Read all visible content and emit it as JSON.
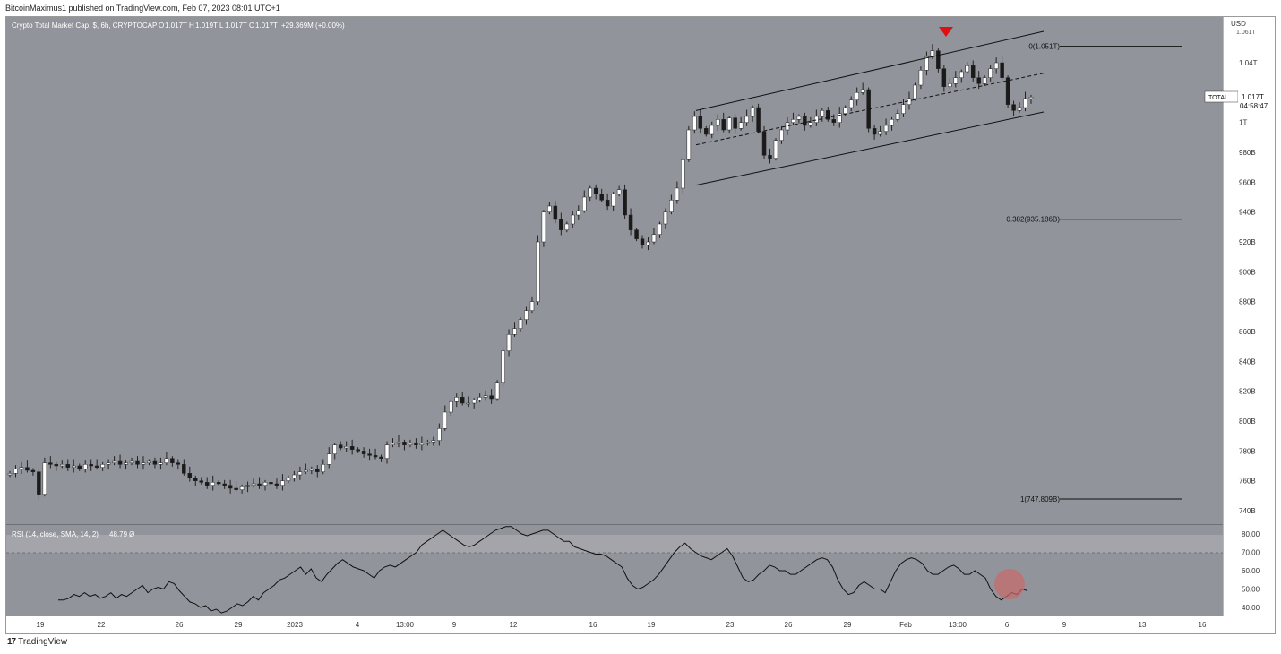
{
  "header": {
    "published": "BitcoinMaximus1 published on TradingView.com, Feb 07, 2023 08:01 UTC+1"
  },
  "footer": {
    "brand": "TradingView",
    "logo_icon": "tradingview-logo-icon"
  },
  "colors": {
    "panel_bg": "#92949b",
    "bull": "#ffffff",
    "bear": "#1a1a1a",
    "marker": "#e01010",
    "rsi_circle": "#c96a6a"
  },
  "legend": {
    "title": "Crypto Total Market Cap, $, 6h, CRYPTOCAP",
    "o_label": "O",
    "o_value": "1.017T",
    "h_label": "H",
    "h_value": "1.019T",
    "l_label": "L",
    "l_value": "1.017T",
    "c_label": "C",
    "c_value": "1.017T",
    "change": "+29.369M (+0.00%)"
  },
  "axis": {
    "currency": "USD",
    "top_partial": "1.061T",
    "price_ticks": [
      "1.04T",
      "1T",
      "980B",
      "960B",
      "940B",
      "920B",
      "900B",
      "880B",
      "860B",
      "840B",
      "820B",
      "800B",
      "780B",
      "760B",
      "740B"
    ],
    "rsi_ticks": [
      "80.00",
      "70.00",
      "60.00",
      "50.00",
      "40.00"
    ],
    "time_ticks": [
      "19",
      "22",
      "26",
      "29",
      "2023",
      "4",
      "13:00",
      "9",
      "12",
      "16",
      "19",
      "23",
      "26",
      "29",
      "Feb",
      "13:00",
      "6",
      "9",
      "13",
      "16"
    ]
  },
  "price_tag": {
    "symbol": "TOTAL",
    "value": "1.017T",
    "countdown": "04:58:47"
  },
  "fib_levels": [
    {
      "label": "0(1.051T)",
      "value": 1.051
    },
    {
      "label": "0.382(935.186B)",
      "value": 0.935186
    },
    {
      "label": "1(747.809B)",
      "value": 0.747809
    }
  ],
  "rsi_legend": {
    "label": "RSI (14, close, SMA, 14, 2)",
    "value": "48.79",
    "extra": "Ø"
  },
  "chart_data": {
    "type": "candlestick",
    "title": "Crypto Total Market Cap, $, 6h, CRYPTOCAP",
    "ylabel": "USD",
    "ylim": [
      740,
      1061
    ],
    "unit": "B",
    "x_ticks": [
      "19",
      "22",
      "26",
      "29",
      "2023",
      "4",
      "13:00",
      "9",
      "12",
      "16",
      "19",
      "23",
      "26",
      "29",
      "Feb",
      "13:00",
      "6",
      "9",
      "13",
      "16"
    ],
    "close_path": [
      765,
      768,
      769,
      767,
      766,
      751,
      772,
      771,
      770,
      771,
      769,
      770,
      768,
      771,
      770,
      769,
      771,
      772,
      773,
      771,
      772,
      773,
      771,
      772,
      773,
      771,
      772,
      775,
      772,
      771,
      765,
      762,
      760,
      759,
      757,
      759,
      758,
      757,
      755,
      754,
      756,
      757,
      758,
      757,
      759,
      758,
      757,
      760,
      762,
      764,
      766,
      767,
      768,
      766,
      771,
      778,
      784,
      782,
      783,
      781,
      780,
      778,
      777,
      776,
      775,
      784,
      785,
      786,
      784,
      785,
      784,
      785,
      786,
      787,
      795,
      806,
      813,
      816,
      812,
      812,
      814,
      816,
      817,
      815,
      826,
      847,
      858,
      862,
      868,
      874,
      880,
      920,
      940,
      944,
      935,
      928,
      932,
      938,
      941,
      950,
      956,
      952,
      948,
      944,
      952,
      955,
      938,
      928,
      922,
      918,
      920,
      925,
      932,
      940,
      948,
      956,
      975,
      995,
      1004,
      996,
      992,
      998,
      1002,
      995,
      1003,
      996,
      1000,
      1004,
      1010,
      994,
      978,
      976,
      988,
      995,
      1000,
      1002,
      1004,
      998,
      1000,
      1004,
      1008,
      1002,
      1000,
      1006,
      1010,
      1015,
      1020,
      1022,
      996,
      992,
      994,
      998,
      1002,
      1006,
      1012,
      1016,
      1025,
      1035,
      1044,
      1048,
      1036,
      1024,
      1026,
      1030,
      1034,
      1038,
      1030,
      1026,
      1030,
      1036,
      1040,
      1030,
      1012,
      1008,
      1010,
      1016,
      1017
    ],
    "channel": {
      "upper": [
        [
          0,
          1008
        ],
        [
          1,
          1061
        ]
      ],
      "lower": [
        [
          0,
          958
        ],
        [
          1,
          1007
        ]
      ],
      "mid": [
        [
          0,
          985
        ],
        [
          1,
          1033
        ]
      ]
    },
    "fib": [
      {
        "level": 0,
        "value": 1051
      },
      {
        "level": 0.382,
        "value": 935.186
      },
      {
        "level": 1,
        "value": 747.809
      }
    ],
    "last": {
      "value": 1017,
      "label": "1.017T"
    },
    "rsi": {
      "name": "RSI (14, close, SMA, 14, 2)",
      "last": 48.79,
      "ylim": [
        35,
        85
      ],
      "bands": [
        70,
        50
      ],
      "values": [
        44,
        44,
        45,
        47,
        46,
        48,
        46,
        47,
        45,
        46,
        48,
        45,
        47,
        46,
        48,
        50,
        52,
        48,
        50,
        51,
        50,
        54,
        53,
        49,
        46,
        43,
        42,
        40,
        41,
        38,
        39,
        37,
        38,
        40,
        42,
        41,
        43,
        46,
        44,
        48,
        50,
        52,
        55,
        56,
        58,
        60,
        62,
        58,
        61,
        56,
        54,
        58,
        61,
        64,
        66,
        64,
        62,
        61,
        60,
        58,
        56,
        60,
        62,
        63,
        62,
        64,
        66,
        68,
        70,
        74,
        76,
        78,
        80,
        82,
        80,
        78,
        76,
        74,
        73,
        74,
        76,
        78,
        80,
        82,
        83,
        84,
        84,
        82,
        80,
        79,
        80,
        81,
        82,
        82,
        80,
        78,
        76,
        76,
        73,
        72,
        71,
        70,
        69,
        69,
        68,
        66,
        64,
        62,
        56,
        52,
        50,
        51,
        53,
        55,
        58,
        62,
        66,
        70,
        73,
        75,
        72,
        70,
        68,
        67,
        66,
        68,
        70,
        72,
        68,
        62,
        56,
        54,
        55,
        58,
        60,
        63,
        62,
        60,
        60,
        58,
        58,
        60,
        62,
        64,
        66,
        67,
        66,
        62,
        55,
        50,
        47,
        48,
        52,
        54,
        52,
        50,
        50,
        48,
        54,
        60,
        64,
        66,
        67,
        66,
        64,
        60,
        58,
        58,
        60,
        62,
        63,
        61,
        58,
        58,
        60,
        58,
        56,
        50,
        46,
        44,
        46,
        48,
        47,
        50,
        49
      ]
    },
    "marker": {
      "type": "down-triangle",
      "at": "local high"
    },
    "highlight": {
      "type": "circle",
      "panel": "rsi",
      "at": "latest"
    }
  }
}
